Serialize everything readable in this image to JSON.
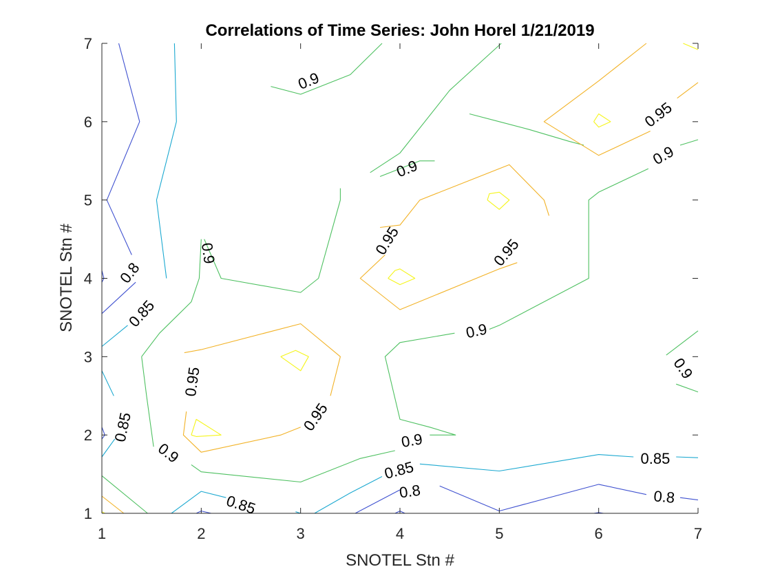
{
  "chart_data": {
    "type": "contour",
    "title": "Correlations of Time Series: John Horel 1/21/2019",
    "xlabel": "SNOTEL Stn #",
    "ylabel": "SNOTEL Stn #",
    "xlim": [
      1,
      7
    ],
    "ylim": [
      1,
      7
    ],
    "xticks": [
      1,
      2,
      3,
      4,
      5,
      6,
      7
    ],
    "yticks": [
      1,
      2,
      3,
      4,
      5,
      6,
      7
    ],
    "grid": false,
    "levels": [
      {
        "level": 0.8,
        "color": "#3F51D0"
      },
      {
        "level": 0.85,
        "color": "#1AA8D0"
      },
      {
        "level": 0.9,
        "color": "#4DC060"
      },
      {
        "level": 0.95,
        "color": "#F2B226"
      },
      {
        "level": 1.0,
        "color": "#F5F51A"
      }
    ],
    "contours": [
      {
        "level": 0.8,
        "points": [
          [
            1.17,
            7
          ],
          [
            1.38,
            6
          ],
          [
            1.05,
            5
          ],
          [
            1.3,
            4.3
          ]
        ]
      },
      {
        "level": 0.8,
        "points": [
          [
            1.34,
            3.95
          ],
          [
            1,
            3.55
          ]
        ]
      },
      {
        "level": 0.8,
        "points": [
          [
            1,
            4.1
          ],
          [
            1.02,
            4
          ],
          [
            1,
            3.95
          ]
        ]
      },
      {
        "level": 0.8,
        "points": [
          [
            1,
            2.1
          ],
          [
            1.03,
            2
          ],
          [
            1,
            1.95
          ]
        ]
      },
      {
        "level": 0.8,
        "points": [
          [
            3.55,
            1
          ],
          [
            4,
            1.3
          ]
        ]
      },
      {
        "level": 0.8,
        "points": [
          [
            4.4,
            1.35
          ],
          [
            5,
            1.03
          ],
          [
            6,
            1.37
          ],
          [
            6.48,
            1.24
          ]
        ]
      },
      {
        "level": 0.8,
        "points": [
          [
            6.82,
            1.2
          ],
          [
            7,
            1.17
          ]
        ]
      },
      {
        "level": 0.8,
        "points": [
          [
            3.95,
            1
          ],
          [
            4,
            1.03
          ],
          [
            4.05,
            1
          ]
        ]
      },
      {
        "level": 0.8,
        "points": [
          [
            1.95,
            1
          ],
          [
            2,
            1.03
          ],
          [
            2.1,
            1
          ]
        ]
      },
      {
        "level": 0.8,
        "points": [
          [
            5.95,
            1
          ],
          [
            6,
            1.01
          ],
          [
            6.05,
            1
          ]
        ]
      },
      {
        "level": 0.85,
        "points": [
          [
            1.73,
            7
          ],
          [
            1.75,
            6
          ],
          [
            1.55,
            5
          ],
          [
            1.65,
            4
          ]
        ]
      },
      {
        "level": 0.85,
        "points": [
          [
            1.26,
            3.4
          ],
          [
            1,
            3.13
          ]
        ]
      },
      {
        "level": 0.85,
        "points": [
          [
            1,
            2.82
          ],
          [
            1.12,
            2.5
          ]
        ]
      },
      {
        "level": 0.85,
        "points": [
          [
            1.13,
            1.95
          ],
          [
            1,
            1.72
          ]
        ]
      },
      {
        "level": 0.85,
        "points": [
          [
            1.7,
            1
          ],
          [
            2,
            1.28
          ],
          [
            2.25,
            1.2
          ]
        ]
      },
      {
        "level": 0.85,
        "points": [
          [
            2.95,
            1.02
          ],
          [
            3,
            1
          ]
        ]
      },
      {
        "level": 0.85,
        "points": [
          [
            3.14,
            1
          ],
          [
            3.5,
            1.26
          ],
          [
            3.82,
            1.47
          ]
        ]
      },
      {
        "level": 0.85,
        "points": [
          [
            4.2,
            1.63
          ],
          [
            5,
            1.54
          ],
          [
            6,
            1.75
          ],
          [
            6.35,
            1.72
          ]
        ]
      },
      {
        "level": 0.85,
        "points": [
          [
            6.78,
            1.72
          ],
          [
            7,
            1.71
          ]
        ]
      },
      {
        "level": 0.9,
        "points": [
          [
            3.82,
            7
          ],
          [
            3.5,
            6.6
          ],
          [
            3,
            6.35
          ],
          [
            2.7,
            6.45
          ]
        ]
      },
      {
        "level": 0.9,
        "points": [
          [
            5.02,
            7
          ],
          [
            4.5,
            6.4
          ],
          [
            4,
            5.6
          ],
          [
            3.7,
            5.35
          ]
        ]
      },
      {
        "level": 0.9,
        "points": [
          [
            3.4,
            5.15
          ],
          [
            3.4,
            5
          ],
          [
            3.18,
            4
          ],
          [
            3,
            3.82
          ],
          [
            2.2,
            4
          ],
          [
            2.03,
            4.5
          ]
        ]
      },
      {
        "level": 0.9,
        "points": [
          [
            2,
            4.5
          ],
          [
            1.98,
            4
          ],
          [
            1.9,
            3.7
          ],
          [
            1.58,
            3.3
          ],
          [
            1.4,
            3
          ]
        ]
      },
      {
        "level": 0.9,
        "points": [
          [
            1.4,
            3
          ],
          [
            1.45,
            2.5
          ],
          [
            1.52,
            1.85
          ]
        ]
      },
      {
        "level": 0.9,
        "points": [
          [
            1.9,
            1.62
          ],
          [
            2,
            1.53
          ],
          [
            3,
            1.4
          ],
          [
            3.6,
            1.7
          ],
          [
            3.95,
            1.8
          ]
        ]
      },
      {
        "level": 0.9,
        "points": [
          [
            4.3,
            2
          ],
          [
            4.56,
            2
          ],
          [
            4.3,
            2.1
          ],
          [
            4,
            2.2
          ],
          [
            3.85,
            3
          ],
          [
            4,
            3.18
          ],
          [
            4.55,
            3.3
          ]
        ]
      },
      {
        "level": 0.9,
        "points": [
          [
            4.9,
            3.35
          ],
          [
            5,
            3.4
          ],
          [
            5.9,
            4
          ],
          [
            5.9,
            5
          ],
          [
            6,
            5.1
          ],
          [
            6.5,
            5.4
          ]
        ]
      },
      {
        "level": 0.9,
        "points": [
          [
            6.82,
            5.7
          ],
          [
            7,
            5.77
          ]
        ]
      },
      {
        "level": 0.9,
        "points": [
          [
            5.85,
            5.7
          ],
          [
            5.7,
            5.75
          ],
          [
            5.3,
            5.9
          ],
          [
            5,
            6
          ],
          [
            4.7,
            6.1
          ]
        ]
      },
      {
        "level": 0.9,
        "points": [
          [
            4.35,
            5.5
          ],
          [
            4.2,
            5.5
          ],
          [
            4,
            5.4
          ],
          [
            3.8,
            5.3
          ]
        ]
      },
      {
        "level": 0.9,
        "points": [
          [
            1,
            1.48
          ],
          [
            1.46,
            1
          ]
        ]
      },
      {
        "level": 0.9,
        "points": [
          [
            6.68,
            3.02
          ],
          [
            7,
            3.33
          ]
        ]
      },
      {
        "level": 0.9,
        "points": [
          [
            6.78,
            2.65
          ],
          [
            7,
            2.55
          ]
        ]
      },
      {
        "level": 0.95,
        "points": [
          [
            6.48,
            7
          ],
          [
            6,
            6.52
          ],
          [
            5.45,
            6
          ],
          [
            6,
            5.57
          ],
          [
            6.52,
            5.88
          ]
        ]
      },
      {
        "level": 0.95,
        "points": [
          [
            6.79,
            6.3
          ],
          [
            7,
            6.5
          ]
        ]
      },
      {
        "level": 0.95,
        "points": [
          [
            3.85,
            4.3
          ],
          [
            3.6,
            4
          ],
          [
            4,
            3.6
          ],
          [
            5,
            4.12
          ],
          [
            5.18,
            4.2
          ]
        ]
      },
      {
        "level": 0.95,
        "points": [
          [
            5.5,
            4.8
          ],
          [
            5.45,
            5
          ],
          [
            5.1,
            5.45
          ],
          [
            4.2,
            5
          ],
          [
            4,
            4.68
          ],
          [
            3.8,
            4.65
          ]
        ]
      },
      {
        "level": 0.95,
        "points": [
          [
            1.83,
            3.05
          ],
          [
            2,
            3.09
          ],
          [
            3,
            3.42
          ],
          [
            3.4,
            3
          ],
          [
            3.3,
            2.5
          ]
        ]
      },
      {
        "level": 0.95,
        "points": [
          [
            3,
            2.1
          ],
          [
            2.8,
            2
          ],
          [
            2,
            1.78
          ],
          [
            1.82,
            2
          ],
          [
            1.85,
            2.3
          ]
        ]
      },
      {
        "level": 0.95,
        "points": [
          [
            1,
            1.22
          ],
          [
            1.22,
            1
          ]
        ]
      },
      {
        "level": 1.0,
        "points": [
          [
            5.95,
            6
          ],
          [
            6,
            6.1
          ],
          [
            6.12,
            6
          ],
          [
            6,
            5.93
          ],
          [
            5.95,
            6
          ]
        ]
      },
      {
        "level": 1.0,
        "points": [
          [
            4.88,
            5
          ],
          [
            4.9,
            5.08
          ],
          [
            5,
            5.1
          ],
          [
            5.1,
            5
          ],
          [
            5,
            4.88
          ],
          [
            4.88,
            5
          ]
        ]
      },
      {
        "level": 1.0,
        "points": [
          [
            3.88,
            4
          ],
          [
            3.95,
            4.1
          ],
          [
            4,
            4.12
          ],
          [
            4.15,
            4
          ],
          [
            4,
            3.92
          ],
          [
            3.88,
            4
          ]
        ]
      },
      {
        "level": 1.0,
        "points": [
          [
            2.8,
            3
          ],
          [
            2.95,
            3.08
          ],
          [
            3.08,
            3
          ],
          [
            3,
            2.82
          ],
          [
            2.8,
            3
          ]
        ]
      },
      {
        "level": 1.0,
        "points": [
          [
            1.9,
            2
          ],
          [
            1.95,
            2.2
          ],
          [
            2.2,
            2
          ],
          [
            1.95,
            1.98
          ],
          [
            1.9,
            2
          ]
        ]
      },
      {
        "level": 1.0,
        "points": [
          [
            6.85,
            7
          ],
          [
            7,
            6.92
          ]
        ]
      },
      {
        "level": 1.0,
        "points": [
          [
            1,
            1.02
          ],
          [
            1.03,
            1
          ]
        ]
      }
    ],
    "labels": [
      {
        "text": "0.9",
        "x": 3.08,
        "y": 6.52,
        "angle": -22
      },
      {
        "text": "0.95",
        "x": 6.6,
        "y": 6.09,
        "angle": -38
      },
      {
        "text": "0.9",
        "x": 6.65,
        "y": 5.57,
        "angle": -30
      },
      {
        "text": "0.9",
        "x": 4.07,
        "y": 5.4,
        "angle": -22
      },
      {
        "text": "0.95",
        "x": 3.87,
        "y": 4.48,
        "angle": -58
      },
      {
        "text": "0.95",
        "x": 5.07,
        "y": 4.33,
        "angle": -50
      },
      {
        "text": "0.9",
        "x": 2.07,
        "y": 4.32,
        "angle": 82
      },
      {
        "text": "0.8",
        "x": 1.28,
        "y": 4.07,
        "angle": -52
      },
      {
        "text": "0.85",
        "x": 1.4,
        "y": 3.55,
        "angle": -48
      },
      {
        "text": "0.9",
        "x": 4.77,
        "y": 3.33,
        "angle": -12
      },
      {
        "text": "0.95",
        "x": 1.91,
        "y": 2.68,
        "angle": -82
      },
      {
        "text": "0.95",
        "x": 3.15,
        "y": 2.23,
        "angle": -55
      },
      {
        "text": "0.85",
        "x": 1.21,
        "y": 2.1,
        "angle": -78
      },
      {
        "text": "0.9",
        "x": 6.85,
        "y": 2.85,
        "angle": 55
      },
      {
        "text": "0.9",
        "x": 4.12,
        "y": 1.93,
        "angle": -10
      },
      {
        "text": "0.9",
        "x": 1.67,
        "y": 1.77,
        "angle": 38
      },
      {
        "text": "0.85",
        "x": 6.57,
        "y": 1.7,
        "angle": 0
      },
      {
        "text": "0.85",
        "x": 3.99,
        "y": 1.55,
        "angle": -15
      },
      {
        "text": "0.8",
        "x": 4.1,
        "y": 1.28,
        "angle": -8
      },
      {
        "text": "0.8",
        "x": 6.66,
        "y": 1.21,
        "angle": 5
      },
      {
        "text": "0.85",
        "x": 2.4,
        "y": 1.11,
        "angle": 18
      }
    ]
  }
}
